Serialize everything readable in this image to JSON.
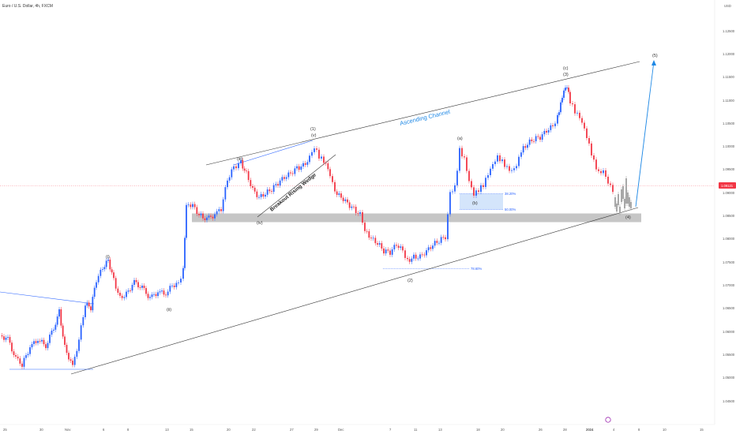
{
  "header": {
    "title": "Euro / U.S. Dollar, 4h, FXCM"
  },
  "price_axis": {
    "currency": "USD",
    "ticks": [
      "1.12500",
      "1.12000",
      "1.11500",
      "1.11000",
      "1.10500",
      "1.10000",
      "1.09500",
      "1.09000",
      "1.08500",
      "1.08000",
      "1.07500",
      "1.07000",
      "1.06500",
      "1.06000",
      "1.05500",
      "1.05000",
      "1.04500"
    ],
    "current_price": "1.09121"
  },
  "time_axis": {
    "ticks": [
      "25",
      "30",
      "Nov",
      "6",
      "8",
      "13",
      "15",
      "20",
      "22",
      "27",
      "29",
      "Dec",
      "7",
      "11",
      "13",
      "18",
      "20",
      "26",
      "28",
      "2024",
      "4",
      "8",
      "10",
      "15"
    ]
  },
  "annotations": {
    "channel": "Ascending Channel",
    "wedge": "Breakout Rising Wedge",
    "waves": {
      "w1": "(1)",
      "wv": "(v)",
      "wiii": "(iii)",
      "wiv": "(iv)",
      "wi": "(i)",
      "wii": "(ii)",
      "w2": "(2)",
      "wa": "(a)",
      "wb": "(b)",
      "wc": "(c)",
      "w3": "(3)",
      "w4": "(4)",
      "w5": "(5)"
    },
    "fib": {
      "f382": "38.20%",
      "f500": "50.00%",
      "f786": "78.60%"
    }
  },
  "colors": {
    "up": "#2962ff",
    "down": "#f23645",
    "projection": "#9e9e9e",
    "accent": "#1e88e5",
    "zone": "#b8b8b8",
    "fib_box": "#cfe2fb"
  },
  "chart_data": {
    "type": "candlestick",
    "title": "Euro / U.S. Dollar, 4h, FXCM",
    "ylabel": "USD",
    "ylim": [
      1.0425,
      1.1305
    ],
    "y_scale": "linear",
    "grid": false,
    "key_points": [
      {
        "label": "(i)",
        "value": 1.0762
      },
      {
        "label": "(ii)",
        "value": 1.0665
      },
      {
        "label": "(iii)",
        "value": 1.0965
      },
      {
        "label": "(iv)",
        "value": 1.0858
      },
      {
        "label": "(1) (v)",
        "value": 1.1009
      },
      {
        "label": "(2)",
        "value": 1.0738
      },
      {
        "label": "(a)",
        "value": 1.1011
      },
      {
        "label": "(b)",
        "value": 1.0888
      },
      {
        "label": "(3) (c)",
        "value": 1.1139
      },
      {
        "label": "(4)",
        "value": 1.0865
      }
    ],
    "current_price": 1.09121,
    "support_zone": [
      1.0836,
      1.0856
    ],
    "fibonacci": [
      {
        "level": "38.20%",
        "value": 1.0895
      },
      {
        "level": "50.00%",
        "value": 1.0867
      },
      {
        "level": "78.60%",
        "value": 1.0745
      }
    ]
  }
}
